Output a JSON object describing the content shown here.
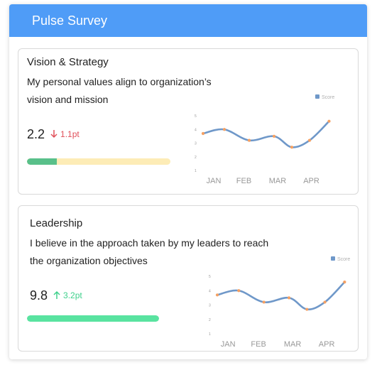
{
  "header": {
    "title": "Pulse Survey"
  },
  "colors": {
    "header_bg": "#4f9cf7",
    "down": "#e0505a",
    "up": "#3fd18c",
    "bar1_fill": "#59c08a",
    "bar1_track": "#fdecb6",
    "bar2_fill": "#59e3a0",
    "line": "#6f98c9",
    "marker": "#f5a062"
  },
  "cards": [
    {
      "title": "Vision & Strategy",
      "question_line1": "My personal values align to organization’s",
      "question_line2": "vision and mission",
      "score": "2.2",
      "delta": "1.1pt",
      "direction": "down",
      "progress": 0.21,
      "chart_data": {
        "type": "line",
        "legend": "Score",
        "legend_position": "top-right",
        "x_ticks": [
          "JAN",
          "FEB",
          "MAR",
          "APR"
        ],
        "y_ticks": [
          "5",
          "4",
          "3",
          "2",
          "1"
        ],
        "ylim": [
          1,
          5
        ],
        "x": [
          0,
          0.6,
          1.3,
          2.0,
          2.5,
          3.0,
          3.55
        ],
        "values": [
          3.7,
          4.0,
          3.2,
          3.5,
          2.7,
          3.2,
          4.6
        ]
      }
    },
    {
      "title": "Leadership",
      "question_line1": "I believe in the approach taken by my leaders to reach",
      "question_line2": "the organization objectives",
      "score": "9.8",
      "delta": "3.2pt",
      "direction": "up",
      "progress": 1.0,
      "chart_data": {
        "type": "line",
        "legend": "Score",
        "legend_position": "top-right",
        "x_ticks": [
          "JAN",
          "FEB",
          "MAR",
          "APR"
        ],
        "y_ticks": [
          "5",
          "4",
          "3",
          "2",
          "1"
        ],
        "ylim": [
          1,
          5
        ],
        "x": [
          0,
          0.6,
          1.3,
          2.0,
          2.5,
          3.0,
          3.55
        ],
        "values": [
          3.7,
          4.0,
          3.2,
          3.5,
          2.7,
          3.2,
          4.6
        ]
      }
    }
  ]
}
